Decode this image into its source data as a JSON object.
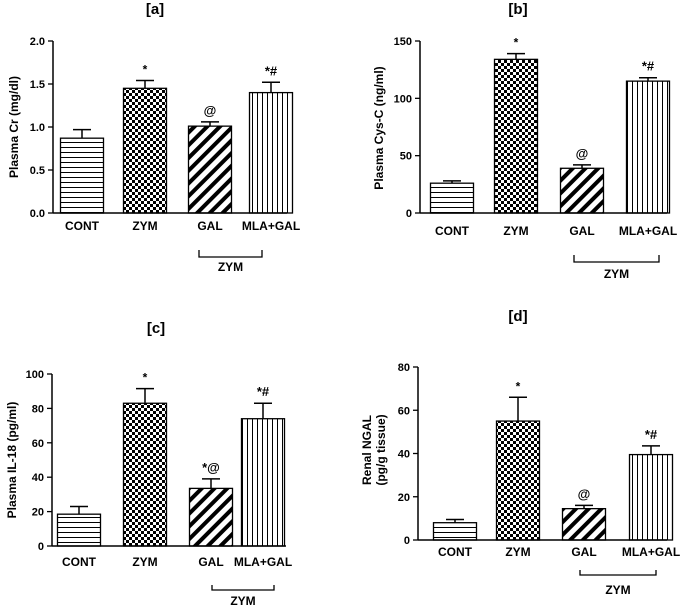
{
  "chart_data": [
    {
      "type": "bar",
      "panel": "[a]",
      "ylabel": "Plasma Cr (mg/dl)",
      "ylim": [
        0,
        2.0
      ],
      "yticks": [
        "0.0",
        "0.5",
        "1.0",
        "1.5",
        "2.0"
      ],
      "categories": [
        "CONT",
        "ZYM",
        "GAL",
        "MLA+GAL"
      ],
      "values": [
        0.87,
        1.45,
        1.01,
        1.4
      ],
      "errors": [
        0.1,
        0.09,
        0.05,
        0.12
      ],
      "significance": [
        "",
        "*",
        "@",
        "*#"
      ],
      "group_label": "ZYM"
    },
    {
      "type": "bar",
      "panel": "[b]",
      "ylabel": "Plasma Cys-C (ng/ml)",
      "ylim": [
        0,
        150
      ],
      "yticks": [
        "0",
        "50",
        "100",
        "150"
      ],
      "categories": [
        "CONT",
        "ZYM",
        "GAL",
        "MLA+GAL"
      ],
      "values": [
        26,
        134,
        39,
        115
      ],
      "errors": [
        2,
        5,
        3,
        3
      ],
      "significance": [
        "",
        "*",
        "@",
        "*#"
      ],
      "group_label": "ZYM"
    },
    {
      "type": "bar",
      "panel": "[c]",
      "ylabel": "Plasma IL-18 (pg/ml)",
      "ylim": [
        0,
        100
      ],
      "yticks": [
        "0",
        "20",
        "40",
        "60",
        "80",
        "100"
      ],
      "categories": [
        "CONT",
        "ZYM",
        "GAL",
        "MLA+GAL"
      ],
      "values": [
        18.5,
        83,
        33.5,
        74
      ],
      "errors": [
        4.5,
        8.5,
        5.5,
        9
      ],
      "significance": [
        "",
        "*",
        "*@",
        "*#"
      ],
      "group_label": "ZYM"
    },
    {
      "type": "bar",
      "panel": "[d]",
      "ylabel": [
        "Renal NGAL",
        "(pg/g tissue)"
      ],
      "ylim": [
        0,
        80
      ],
      "yticks": [
        "0",
        "20",
        "40",
        "60",
        "80"
      ],
      "categories": [
        "CONT",
        "ZYM",
        "GAL",
        "MLA+GAL"
      ],
      "values": [
        8,
        55,
        14.5,
        39.5
      ],
      "errors": [
        1.5,
        11,
        1.5,
        4
      ],
      "significance": [
        "",
        "*",
        "@",
        "*#"
      ],
      "group_label": "ZYM"
    }
  ]
}
